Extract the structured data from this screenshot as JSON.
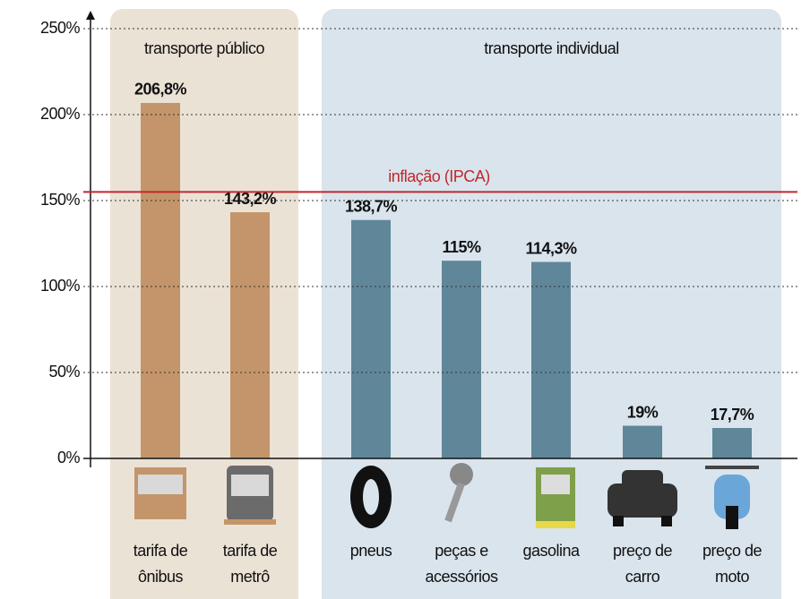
{
  "chart_data": {
    "type": "bar",
    "groups": [
      {
        "name": "transporte público",
        "color": "#c4956a",
        "background": "#ebe2d6",
        "categories": [
          "tarifa de ônibus",
          "tarifa de metrô"
        ],
        "values": [
          206.8,
          143.2
        ],
        "value_labels": [
          "206,8%",
          "143,2%"
        ]
      },
      {
        "name": "transporte individual",
        "color": "#5f8799",
        "background": "#dae4ec",
        "categories": [
          "pneus",
          "peças e acessórios",
          "gasolina",
          "preço de carro",
          "preço de moto"
        ],
        "values": [
          138.7,
          115,
          114.3,
          19,
          17.7
        ],
        "value_labels": [
          "138,7%",
          "115%",
          "114,3%",
          "19%",
          "17,7%"
        ]
      }
    ],
    "reference_line": {
      "label": "inflação (IPCA)",
      "value": 155,
      "color": "#c0282d"
    },
    "ylim": [
      0,
      250
    ],
    "yticks": [
      {
        "value": 0,
        "label": "0%"
      },
      {
        "value": 50,
        "label": "50%"
      },
      {
        "value": 100,
        "label": "100%"
      },
      {
        "value": 150,
        "label": "150%"
      },
      {
        "value": 200,
        "label": "200%"
      },
      {
        "value": 250,
        "label": "250%"
      }
    ],
    "grid": true
  }
}
